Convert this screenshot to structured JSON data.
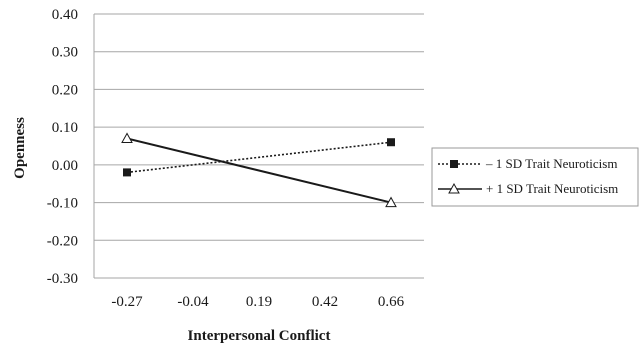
{
  "chart_data": {
    "type": "line",
    "categories": [
      "-0.27",
      "-0.04",
      "0.19",
      "0.42",
      "0.66"
    ],
    "x": [
      -0.27,
      0.66
    ],
    "xlabel": "Interpersonal Conflict",
    "ylabel": "Openness",
    "ylim": [
      -0.3,
      0.4
    ],
    "yticks": [
      "0.40",
      "0.30",
      "0.20",
      "0.10",
      "0.00",
      "-0.10",
      "-0.20",
      "-0.30"
    ],
    "grid": "horizontal",
    "legend_position": "right",
    "series": [
      {
        "name": "– 1 SD Trait Neuroticism",
        "values": [
          -0.02,
          0.06
        ],
        "line": "dotted",
        "marker": "filled-square",
        "color": "#1a1a1a"
      },
      {
        "name": "+ 1 SD Trait Neuroticism",
        "values": [
          0.07,
          -0.1
        ],
        "line": "solid",
        "marker": "open-triangle",
        "color": "#1a1a1a"
      }
    ]
  }
}
